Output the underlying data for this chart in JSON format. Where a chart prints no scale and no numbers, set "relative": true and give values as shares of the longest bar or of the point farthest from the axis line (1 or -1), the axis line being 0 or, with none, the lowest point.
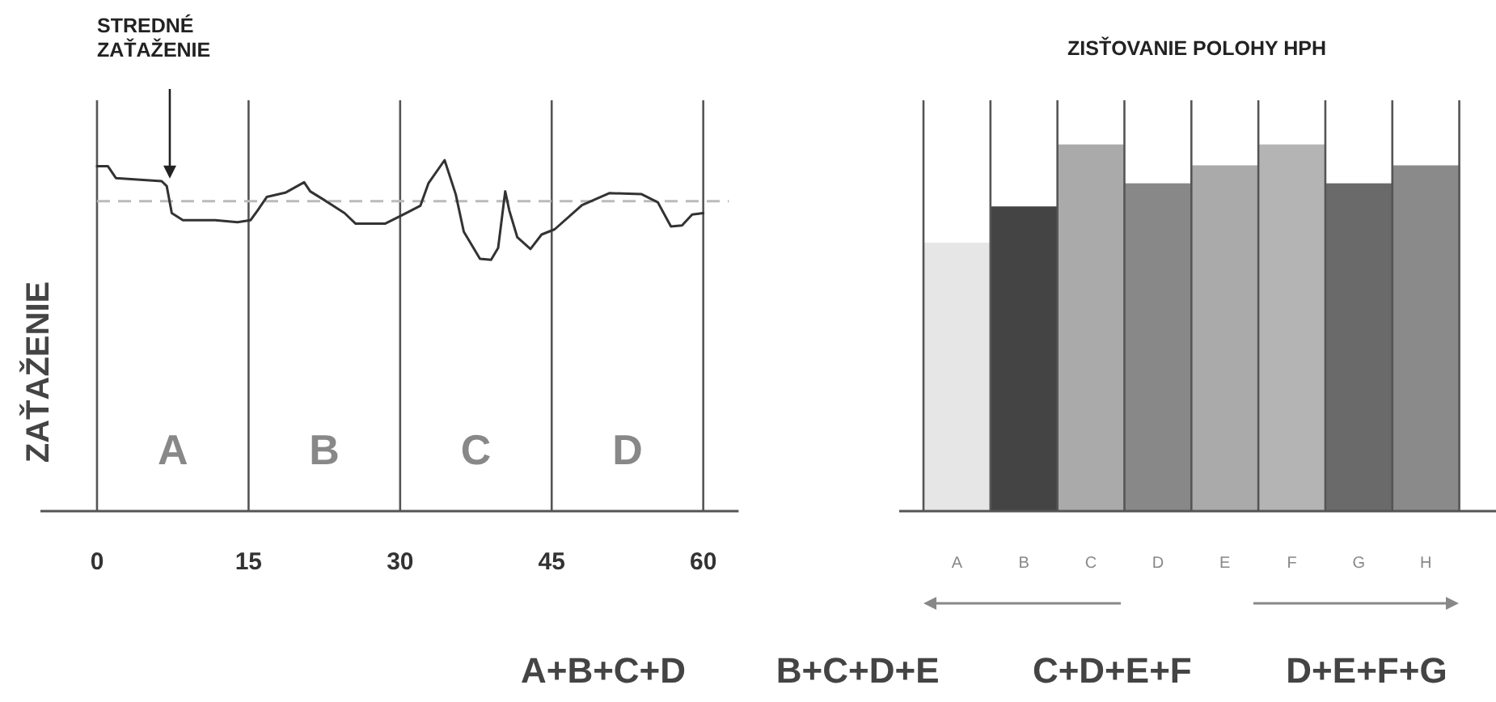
{
  "chart_data": [
    {
      "type": "line",
      "ylabel": "ZAŤAŽENIE",
      "relative": true,
      "xlim": [
        -5.6,
        63.5
      ],
      "xticks": [
        0,
        15,
        30,
        45,
        60
      ],
      "grid": "x",
      "marker": "none",
      "line_style": "solid",
      "series": [
        {
          "color": "#333333",
          "x": [
            0,
            1.07,
            1.87,
            6.4,
            6.9,
            7.4,
            8.5,
            11.7,
            13.9,
            15.2,
            15.9,
            16.8,
            18.7,
            20.5,
            21.1,
            22.4,
            24.5,
            25.6,
            28.5,
            30.1,
            32.0,
            32.8,
            34.4,
            35.5,
            36.3,
            37.9,
            39.0,
            39.7,
            40.4,
            40.8,
            41.6,
            42.9,
            44.0,
            45.3,
            48.0,
            50.7,
            53.9,
            55.5,
            56.8,
            57.9,
            58.9,
            60
          ],
          "values": [
            0.983,
            0.983,
            0.949,
            0.94,
            0.926,
            0.849,
            0.829,
            0.829,
            0.823,
            0.829,
            0.857,
            0.895,
            0.908,
            0.937,
            0.911,
            0.888,
            0.849,
            0.819,
            0.819,
            0.842,
            0.87,
            0.934,
            1.0,
            0.903,
            0.796,
            0.719,
            0.716,
            0.75,
            0.911,
            0.857,
            0.78,
            0.747,
            0.788,
            0.803,
            0.872,
            0.906,
            0.903,
            0.88,
            0.811,
            0.814,
            0.845,
            0.849
          ]
        }
      ],
      "ref_lines": [
        {
          "axis": "y",
          "value": 0.883,
          "color": "#bbbbbb",
          "line_style": "dashed"
        }
      ],
      "annotations": [
        "STREDNÉ ZAŤAŽENIE",
        "A",
        "B",
        "C",
        "D"
      ]
    },
    {
      "type": "bar",
      "title": "ZISŤOVANIE POLOHY HPH",
      "relative": true,
      "grid": "x",
      "categories": [
        "A",
        "B",
        "C",
        "D",
        "E",
        "F",
        "G",
        "H"
      ],
      "values": [
        0.732,
        0.831,
        1,
        0.894,
        0.943,
        1,
        0.894,
        0.943
      ],
      "colors": [
        "#e6e6e6",
        "#444444",
        "#aaaaaa",
        "#888888",
        "#aaaaaa",
        "#b4b4b4",
        "#6a6a6a",
        "#8a8a8a"
      ],
      "annotations": [
        "A+B+C+D",
        "B+C+D+E",
        "C+D+E+F",
        "D+E+F+G"
      ]
    }
  ]
}
